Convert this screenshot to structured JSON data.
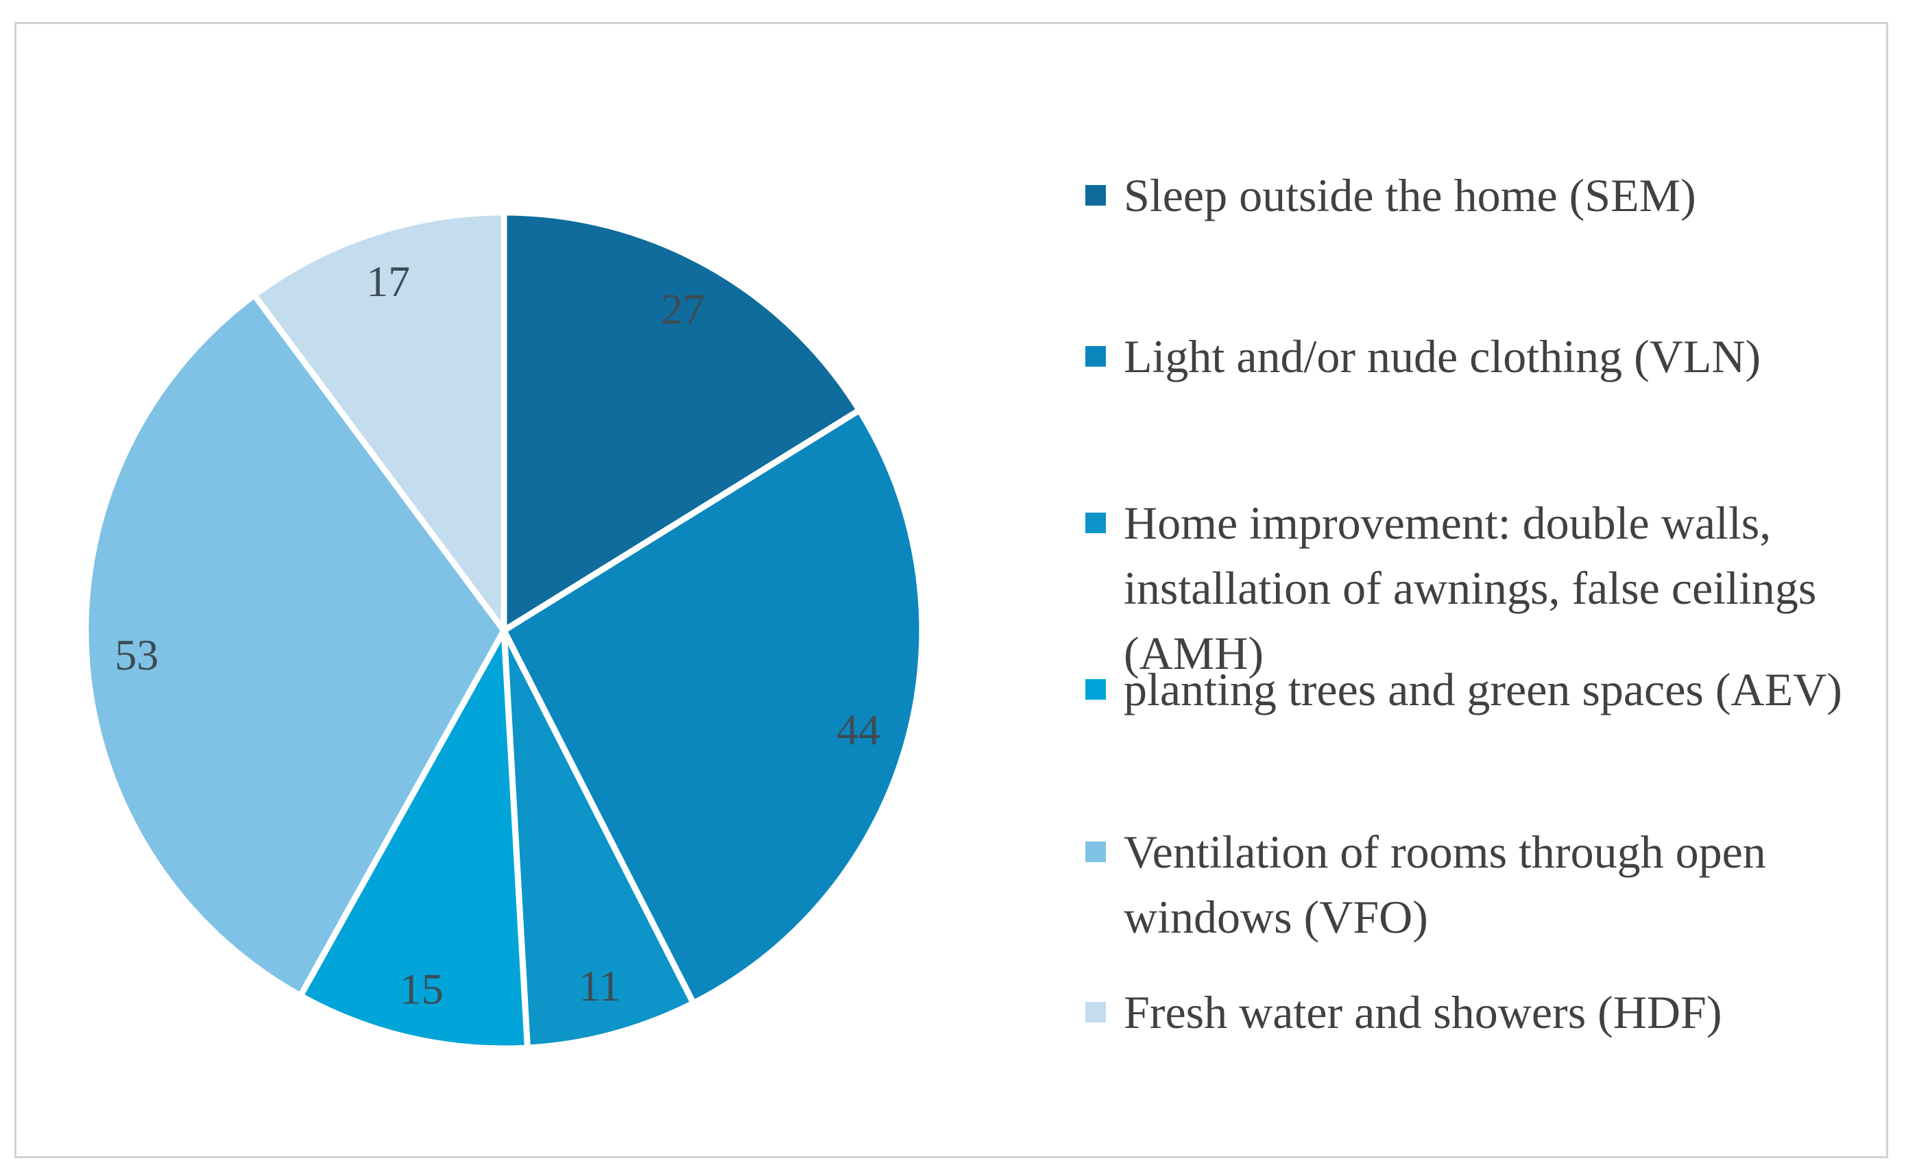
{
  "figure": {
    "background_color": "#ffffff",
    "border_color": "#d2d2d2"
  },
  "chart_data": {
    "type": "pie",
    "title": "",
    "categories": [
      "Sleep outside the home (SEM)",
      "Light and/or nude clothing (VLN)",
      "Home improvement: double walls,\ninstallation of awnings, false ceilings\n(AMH)",
      "planting trees and green spaces (AEV)",
      "Ventilation of rooms through open\nwindows (VFO)",
      "Fresh water and showers (HDF)"
    ],
    "codes": [
      "SEM",
      "VLN",
      "AMH",
      "AEV",
      "VFO",
      "HDF"
    ],
    "values": [
      27,
      44,
      11,
      15,
      53,
      17
    ],
    "data_labels": [
      "27",
      "44",
      "11",
      "15",
      "53",
      "17"
    ],
    "colors": [
      "#0f6c9c",
      "#0b87bd",
      "#0d94c8",
      "#00a4d8",
      "#7fc2e5",
      "#c3dcee"
    ],
    "data_label_color": "#3d4b54",
    "legend_text_color": "#414141",
    "legend_position": "right",
    "start_angle_deg": 0,
    "direction": "clockwise",
    "slice_separator_color": "#ffffff",
    "grid": false
  }
}
